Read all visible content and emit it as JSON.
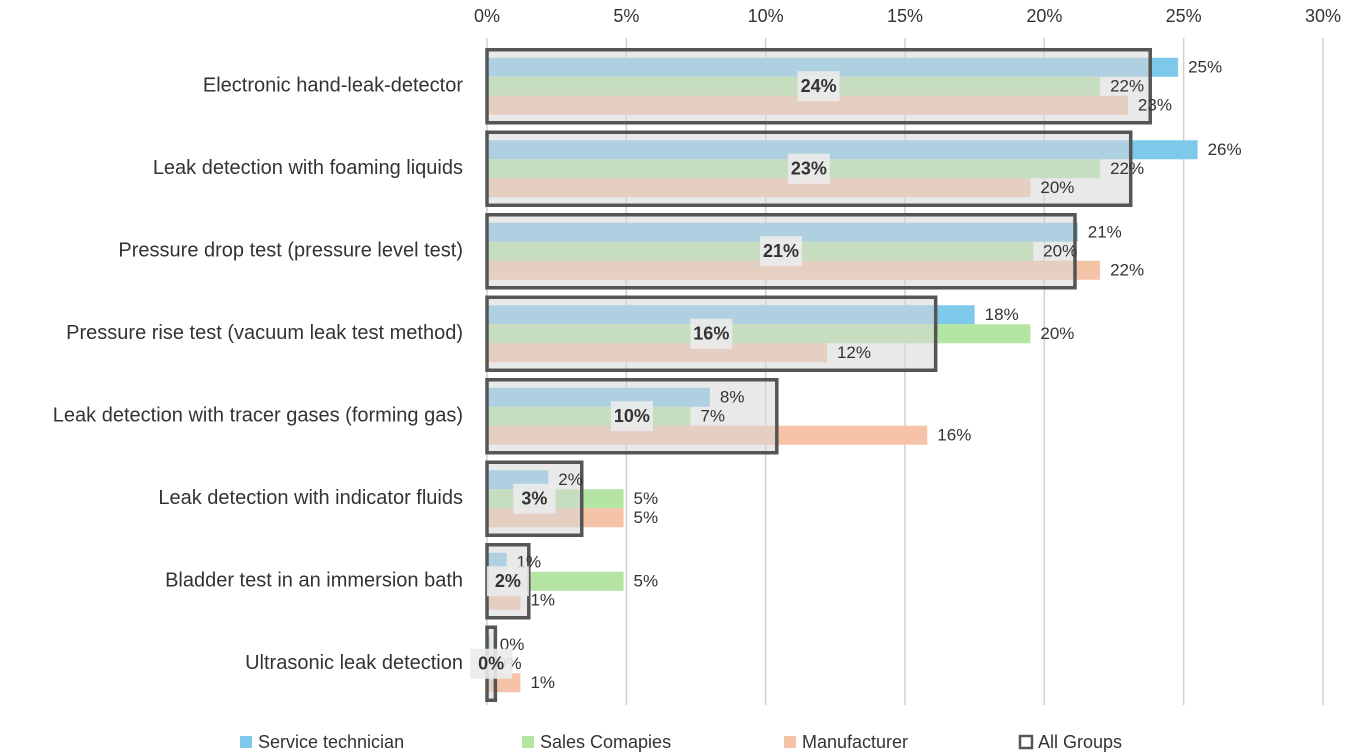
{
  "chart_data": {
    "type": "hbar",
    "categories": [
      "Electronic hand-leak-detector",
      "Leak detection with foaming liquids",
      "Pressure drop test (pressure level test)",
      "Pressure rise test (vacuum leak test method)",
      "Leak detection with tracer gases (forming gas)",
      "Leak detection with indicator fluids",
      "Bladder test in an immersion bath",
      "Ultrasonic leak detection"
    ],
    "series": [
      {
        "name": "Service technician",
        "color": "#7ec8ea",
        "values": [
          24.8,
          25.5,
          21.2,
          17.5,
          8.0,
          2.2,
          0.7,
          0.1
        ],
        "value_labels": [
          "25%",
          "26%",
          "21%",
          "18%",
          "8%",
          "2%",
          "1%",
          "0%"
        ]
      },
      {
        "name": "Sales Comapies",
        "color": "#b4e5a2",
        "values": [
          22.0,
          22.0,
          19.6,
          19.5,
          7.3,
          4.9,
          4.9,
          0.0
        ],
        "value_labels": [
          "22%",
          "22%",
          "20%",
          "20%",
          "7%",
          "5%",
          "5%",
          "0%"
        ]
      },
      {
        "name": "Manufacturer",
        "color": "#f6c3a9",
        "values": [
          23.0,
          19.5,
          22.0,
          12.2,
          15.8,
          4.9,
          1.2,
          1.2
        ],
        "value_labels": [
          "23%",
          "20%",
          "22%",
          "12%",
          "16%",
          "5%",
          "1%",
          "1%"
        ]
      },
      {
        "name": "All Groups",
        "color": "#555555",
        "style": "outline",
        "values": [
          23.8,
          23.1,
          21.1,
          16.1,
          10.4,
          3.4,
          1.5,
          0.3
        ],
        "value_labels": [
          "24%",
          "23%",
          "21%",
          "16%",
          "10%",
          "3%",
          "2%",
          "0%"
        ]
      }
    ],
    "xlim": [
      0,
      30
    ],
    "xticks": [
      {
        "value": 0,
        "label": "0%"
      },
      {
        "value": 5,
        "label": "5%"
      },
      {
        "value": 10,
        "label": "10%"
      },
      {
        "value": 15,
        "label": "15%"
      },
      {
        "value": 20,
        "label": "20%"
      },
      {
        "value": 25,
        "label": "25%"
      },
      {
        "value": 30,
        "label": "30%"
      }
    ],
    "grid": true,
    "legend": "bottom"
  }
}
